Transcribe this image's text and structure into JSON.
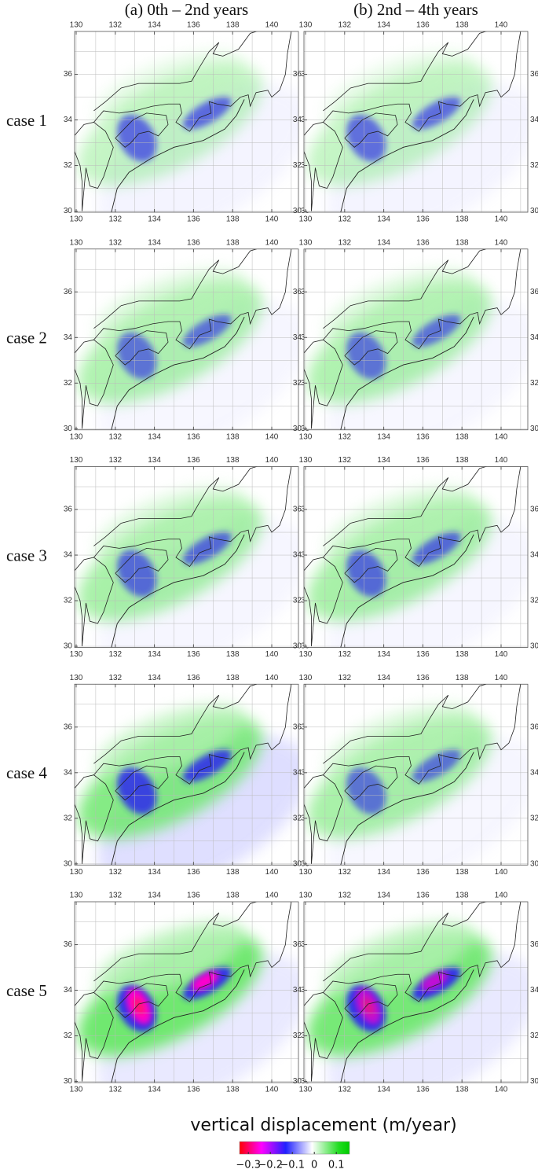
{
  "columns": [
    "(a) 0th  –  2nd years",
    "(b) 2nd – 4th years"
  ],
  "rows": [
    "case 1",
    "case 2",
    "case 3",
    "case 4",
    "case 5"
  ],
  "lon_ticks": [
    130,
    132,
    134,
    136,
    138,
    140
  ],
  "lat_ticks": [
    30,
    32,
    34,
    36
  ],
  "colorbar": {
    "label": "vertical displacement (m/year)",
    "lim": [
      -0.34,
      0.16
    ],
    "ticks": [
      {
        "value": -0.3,
        "label": "−0.3"
      },
      {
        "value": -0.2,
        "label": "−0.2"
      },
      {
        "value": -0.1,
        "label": "−0.1"
      },
      0,
      0.1
    ]
  }
}
